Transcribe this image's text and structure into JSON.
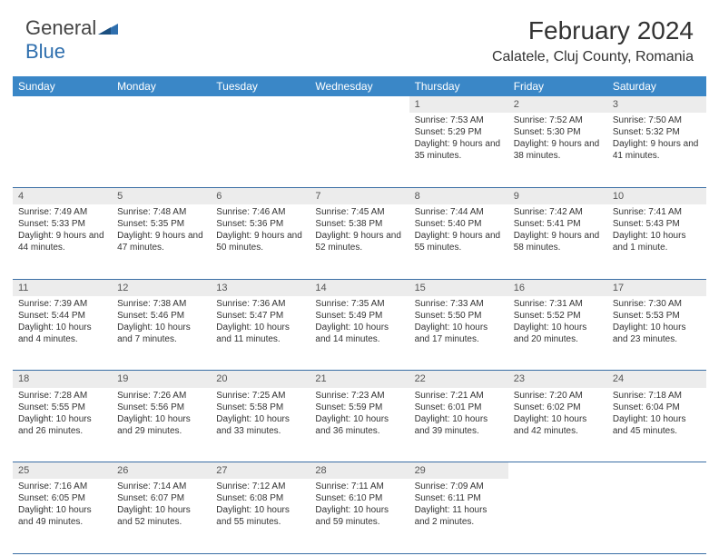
{
  "logo": {
    "general": "General",
    "blue": "Blue"
  },
  "title": "February 2024",
  "location": "Calatele, Cluj County, Romania",
  "colors": {
    "header_bg": "#3a87c7",
    "header_fg": "#ffffff",
    "daynum_bg": "#ececec",
    "border": "#3a6ea5",
    "text": "#333333"
  },
  "days": [
    "Sunday",
    "Monday",
    "Tuesday",
    "Wednesday",
    "Thursday",
    "Friday",
    "Saturday"
  ],
  "weeks": [
    [
      null,
      null,
      null,
      null,
      {
        "n": "1",
        "sr": "Sunrise: 7:53 AM",
        "ss": "Sunset: 5:29 PM",
        "dl": "Daylight: 9 hours and 35 minutes."
      },
      {
        "n": "2",
        "sr": "Sunrise: 7:52 AM",
        "ss": "Sunset: 5:30 PM",
        "dl": "Daylight: 9 hours and 38 minutes."
      },
      {
        "n": "3",
        "sr": "Sunrise: 7:50 AM",
        "ss": "Sunset: 5:32 PM",
        "dl": "Daylight: 9 hours and 41 minutes."
      }
    ],
    [
      {
        "n": "4",
        "sr": "Sunrise: 7:49 AM",
        "ss": "Sunset: 5:33 PM",
        "dl": "Daylight: 9 hours and 44 minutes."
      },
      {
        "n": "5",
        "sr": "Sunrise: 7:48 AM",
        "ss": "Sunset: 5:35 PM",
        "dl": "Daylight: 9 hours and 47 minutes."
      },
      {
        "n": "6",
        "sr": "Sunrise: 7:46 AM",
        "ss": "Sunset: 5:36 PM",
        "dl": "Daylight: 9 hours and 50 minutes."
      },
      {
        "n": "7",
        "sr": "Sunrise: 7:45 AM",
        "ss": "Sunset: 5:38 PM",
        "dl": "Daylight: 9 hours and 52 minutes."
      },
      {
        "n": "8",
        "sr": "Sunrise: 7:44 AM",
        "ss": "Sunset: 5:40 PM",
        "dl": "Daylight: 9 hours and 55 minutes."
      },
      {
        "n": "9",
        "sr": "Sunrise: 7:42 AM",
        "ss": "Sunset: 5:41 PM",
        "dl": "Daylight: 9 hours and 58 minutes."
      },
      {
        "n": "10",
        "sr": "Sunrise: 7:41 AM",
        "ss": "Sunset: 5:43 PM",
        "dl": "Daylight: 10 hours and 1 minute."
      }
    ],
    [
      {
        "n": "11",
        "sr": "Sunrise: 7:39 AM",
        "ss": "Sunset: 5:44 PM",
        "dl": "Daylight: 10 hours and 4 minutes."
      },
      {
        "n": "12",
        "sr": "Sunrise: 7:38 AM",
        "ss": "Sunset: 5:46 PM",
        "dl": "Daylight: 10 hours and 7 minutes."
      },
      {
        "n": "13",
        "sr": "Sunrise: 7:36 AM",
        "ss": "Sunset: 5:47 PM",
        "dl": "Daylight: 10 hours and 11 minutes."
      },
      {
        "n": "14",
        "sr": "Sunrise: 7:35 AM",
        "ss": "Sunset: 5:49 PM",
        "dl": "Daylight: 10 hours and 14 minutes."
      },
      {
        "n": "15",
        "sr": "Sunrise: 7:33 AM",
        "ss": "Sunset: 5:50 PM",
        "dl": "Daylight: 10 hours and 17 minutes."
      },
      {
        "n": "16",
        "sr": "Sunrise: 7:31 AM",
        "ss": "Sunset: 5:52 PM",
        "dl": "Daylight: 10 hours and 20 minutes."
      },
      {
        "n": "17",
        "sr": "Sunrise: 7:30 AM",
        "ss": "Sunset: 5:53 PM",
        "dl": "Daylight: 10 hours and 23 minutes."
      }
    ],
    [
      {
        "n": "18",
        "sr": "Sunrise: 7:28 AM",
        "ss": "Sunset: 5:55 PM",
        "dl": "Daylight: 10 hours and 26 minutes."
      },
      {
        "n": "19",
        "sr": "Sunrise: 7:26 AM",
        "ss": "Sunset: 5:56 PM",
        "dl": "Daylight: 10 hours and 29 minutes."
      },
      {
        "n": "20",
        "sr": "Sunrise: 7:25 AM",
        "ss": "Sunset: 5:58 PM",
        "dl": "Daylight: 10 hours and 33 minutes."
      },
      {
        "n": "21",
        "sr": "Sunrise: 7:23 AM",
        "ss": "Sunset: 5:59 PM",
        "dl": "Daylight: 10 hours and 36 minutes."
      },
      {
        "n": "22",
        "sr": "Sunrise: 7:21 AM",
        "ss": "Sunset: 6:01 PM",
        "dl": "Daylight: 10 hours and 39 minutes."
      },
      {
        "n": "23",
        "sr": "Sunrise: 7:20 AM",
        "ss": "Sunset: 6:02 PM",
        "dl": "Daylight: 10 hours and 42 minutes."
      },
      {
        "n": "24",
        "sr": "Sunrise: 7:18 AM",
        "ss": "Sunset: 6:04 PM",
        "dl": "Daylight: 10 hours and 45 minutes."
      }
    ],
    [
      {
        "n": "25",
        "sr": "Sunrise: 7:16 AM",
        "ss": "Sunset: 6:05 PM",
        "dl": "Daylight: 10 hours and 49 minutes."
      },
      {
        "n": "26",
        "sr": "Sunrise: 7:14 AM",
        "ss": "Sunset: 6:07 PM",
        "dl": "Daylight: 10 hours and 52 minutes."
      },
      {
        "n": "27",
        "sr": "Sunrise: 7:12 AM",
        "ss": "Sunset: 6:08 PM",
        "dl": "Daylight: 10 hours and 55 minutes."
      },
      {
        "n": "28",
        "sr": "Sunrise: 7:11 AM",
        "ss": "Sunset: 6:10 PM",
        "dl": "Daylight: 10 hours and 59 minutes."
      },
      {
        "n": "29",
        "sr": "Sunrise: 7:09 AM",
        "ss": "Sunset: 6:11 PM",
        "dl": "Daylight: 11 hours and 2 minutes."
      },
      null,
      null
    ]
  ]
}
